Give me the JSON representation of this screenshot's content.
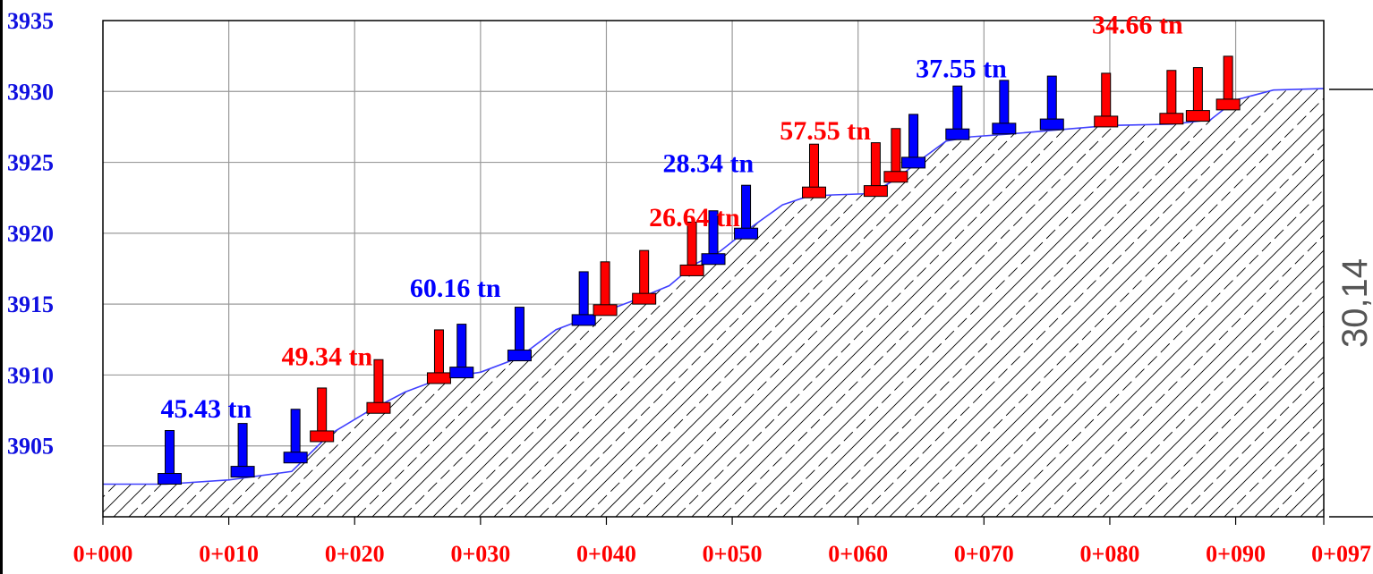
{
  "chart_data": {
    "type": "line",
    "xlabel": "",
    "ylabel": "",
    "xlim": [
      0,
      97
    ],
    "ylim": [
      3900,
      3935
    ],
    "grid": true,
    "y_ticks": [
      {
        "value": 3905,
        "label": "3905"
      },
      {
        "value": 3910,
        "label": "3910"
      },
      {
        "value": 3915,
        "label": "3915"
      },
      {
        "value": 3920,
        "label": "3920"
      },
      {
        "value": 3925,
        "label": "3925"
      },
      {
        "value": 3930,
        "label": "3930"
      },
      {
        "value": 3935,
        "label": "3935"
      }
    ],
    "x_ticks": [
      {
        "value": 0,
        "label": "0+000"
      },
      {
        "value": 10,
        "label": "0+010"
      },
      {
        "value": 20,
        "label": "0+020"
      },
      {
        "value": 30,
        "label": "0+030"
      },
      {
        "value": 40,
        "label": "0+040"
      },
      {
        "value": 50,
        "label": "0+050"
      },
      {
        "value": 60,
        "label": "0+060"
      },
      {
        "value": 70,
        "label": "0+070"
      },
      {
        "value": 80,
        "label": "0+080"
      },
      {
        "value": 90,
        "label": "0+090"
      },
      {
        "value": 97,
        "label": "0+097"
      }
    ],
    "terrain_profile": [
      [
        0,
        3902.3
      ],
      [
        5,
        3902.3
      ],
      [
        10,
        3902.6
      ],
      [
        15,
        3903.2
      ],
      [
        18,
        3905.8
      ],
      [
        21,
        3907.4
      ],
      [
        24,
        3908.8
      ],
      [
        27,
        3909.8
      ],
      [
        30,
        3910.2
      ],
      [
        33,
        3911.2
      ],
      [
        36,
        3913.2
      ],
      [
        39,
        3914.2
      ],
      [
        42,
        3915.2
      ],
      [
        45,
        3916.3
      ],
      [
        47,
        3917.8
      ],
      [
        49,
        3918.7
      ],
      [
        51,
        3920.1
      ],
      [
        54,
        3922.0
      ],
      [
        56,
        3922.6
      ],
      [
        58,
        3922.7
      ],
      [
        61,
        3922.8
      ],
      [
        63,
        3923.8
      ],
      [
        65,
        3925.2
      ],
      [
        67,
        3926.5
      ],
      [
        69,
        3926.8
      ],
      [
        72,
        3927.0
      ],
      [
        76,
        3927.3
      ],
      [
        80,
        3927.6
      ],
      [
        85,
        3927.7
      ],
      [
        88,
        3928.0
      ],
      [
        90,
        3929.4
      ],
      [
        93,
        3930.1
      ],
      [
        97,
        3930.2
      ]
    ],
    "supports": [
      {
        "x": 5.3,
        "z": 3902.3,
        "color": "blue"
      },
      {
        "x": 11.1,
        "z": 3902.8,
        "color": "blue"
      },
      {
        "x": 15.3,
        "z": 3903.8,
        "color": "blue"
      },
      {
        "x": 17.4,
        "z": 3905.3,
        "color": "red"
      },
      {
        "x": 21.9,
        "z": 3907.3,
        "color": "red"
      },
      {
        "x": 26.7,
        "z": 3909.4,
        "color": "red"
      },
      {
        "x": 28.5,
        "z": 3909.8,
        "color": "blue"
      },
      {
        "x": 33.1,
        "z": 3911.0,
        "color": "blue"
      },
      {
        "x": 38.2,
        "z": 3913.5,
        "color": "blue"
      },
      {
        "x": 39.9,
        "z": 3914.2,
        "color": "red"
      },
      {
        "x": 43.0,
        "z": 3915.0,
        "color": "red"
      },
      {
        "x": 46.8,
        "z": 3917.0,
        "color": "red"
      },
      {
        "x": 48.5,
        "z": 3917.8,
        "color": "blue"
      },
      {
        "x": 51.1,
        "z": 3919.6,
        "color": "blue"
      },
      {
        "x": 56.5,
        "z": 3922.5,
        "color": "red"
      },
      {
        "x": 61.4,
        "z": 3922.6,
        "color": "red"
      },
      {
        "x": 63.0,
        "z": 3923.6,
        "color": "red"
      },
      {
        "x": 64.4,
        "z": 3924.6,
        "color": "blue"
      },
      {
        "x": 67.9,
        "z": 3926.6,
        "color": "blue"
      },
      {
        "x": 71.6,
        "z": 3927.0,
        "color": "blue"
      },
      {
        "x": 75.4,
        "z": 3927.3,
        "color": "blue"
      },
      {
        "x": 79.7,
        "z": 3927.5,
        "color": "red"
      },
      {
        "x": 84.9,
        "z": 3927.7,
        "color": "red"
      },
      {
        "x": 87.0,
        "z": 3927.9,
        "color": "red"
      },
      {
        "x": 89.4,
        "z": 3928.7,
        "color": "red"
      }
    ],
    "annotations": [
      {
        "text": "45.43 tn",
        "x": 8.2,
        "y": 3907.0,
        "color": "blue"
      },
      {
        "text": "49.34 tn",
        "x": 17.8,
        "y": 3910.7,
        "color": "red"
      },
      {
        "text": "60.16 tn",
        "x": 28.0,
        "y": 3915.5,
        "color": "blue"
      },
      {
        "x": 47.0,
        "y": 3920.5,
        "text": "26.64 tn",
        "color": "red"
      },
      {
        "text": "28.34 tn",
        "x": 48.1,
        "y": 3924.3,
        "color": "blue"
      },
      {
        "text": "57.55 tn",
        "x": 57.4,
        "y": 3926.6,
        "color": "red"
      },
      {
        "text": "37.55 tn",
        "x": 68.2,
        "y": 3931.0,
        "color": "blue"
      },
      {
        "text": "34.66 tn",
        "x": 82.2,
        "y": 3934.1,
        "color": "red"
      }
    ],
    "dimension_label": "30,14",
    "colors": {
      "blue_series": "#0000ff",
      "red_series": "#ff0000",
      "y_tick_text": "#1010e0",
      "x_tick_text": "#ff0000",
      "terrain_line": "#4040ff",
      "hatch": "#000000"
    }
  }
}
